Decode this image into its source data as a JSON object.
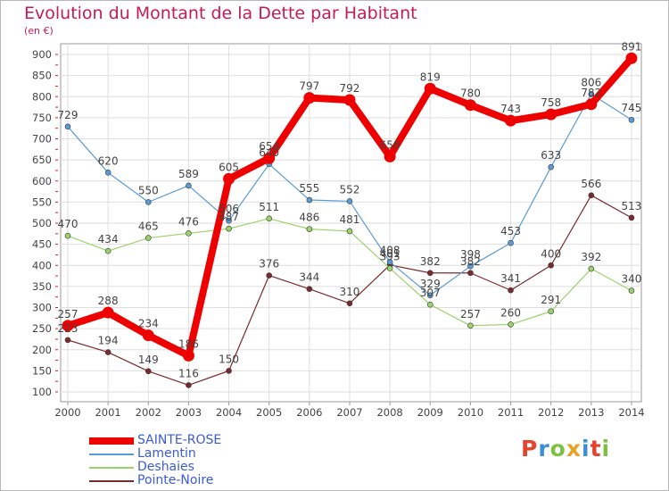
{
  "chart": {
    "title": "Evolution du Montant de la Dette par Habitant",
    "unit_label": "(en €)"
  },
  "logo": {
    "text": "Proxiti",
    "letter_colors": [
      "#e5432e",
      "#3a8fd6",
      "#7cc242",
      "#e5a323",
      "#3a8fd6",
      "#e5432e",
      "#7cc242"
    ]
  },
  "chart_data": {
    "type": "line",
    "title": "Evolution du Montant de la Dette par Habitant",
    "ylabel": "(en €)",
    "ylim": [
      100,
      900
    ],
    "yticks": [
      100,
      150,
      200,
      250,
      300,
      350,
      400,
      450,
      500,
      550,
      600,
      650,
      700,
      750,
      800,
      850,
      900
    ],
    "grid": true,
    "legend_position": "bottom-left",
    "x": [
      "2000",
      "2001",
      "2002",
      "2003",
      "2004",
      "2005",
      "2006",
      "2007",
      "2008",
      "2009",
      "2010",
      "2011",
      "2012",
      "2013",
      "2014"
    ],
    "series": [
      {
        "name": "SAINTE-ROSE",
        "color": "#ee0000",
        "values": [
          257,
          288,
          234,
          186,
          605,
          654,
          797,
          792,
          658,
          819,
          780,
          743,
          758,
          782,
          891
        ],
        "value_labels": [
          "257",
          "288",
          "234",
          "186",
          "605",
          "654",
          "797",
          "792",
          "658",
          "819",
          "780",
          "743",
          "758",
          "782",
          "891"
        ]
      },
      {
        "name": "Lamentin",
        "color": "#5b9bd5",
        "values": [
          729,
          620,
          550,
          589,
          506,
          640,
          555,
          552,
          408,
          329,
          398,
          453,
          633,
          806,
          745
        ],
        "value_labels": [
          "729",
          "620",
          "550",
          "589",
          "506",
          "640",
          "555",
          "552",
          "408",
          "329",
          "398",
          "453",
          "633",
          "806",
          "745"
        ]
      },
      {
        "name": "Deshaies",
        "color": "#9ad36a",
        "values": [
          470,
          434,
          465,
          476,
          487,
          511,
          486,
          481,
          393,
          307,
          257,
          260,
          291,
          392,
          340
        ],
        "value_labels": [
          "470",
          "434",
          "465",
          "476",
          "487",
          "511",
          "486",
          "481",
          "393",
          "307",
          "257",
          "260",
          "291",
          "392",
          "340"
        ]
      },
      {
        "name": "Pointe-Noire",
        "color": "#7a2a2a",
        "values": [
          223,
          194,
          149,
          116,
          150,
          376,
          344,
          310,
          401,
          382,
          382,
          341,
          400,
          566,
          513
        ],
        "value_labels": [
          "223",
          "194",
          "149",
          "116",
          "150",
          "376",
          "344",
          "310",
          "401",
          "382",
          "382",
          "341",
          "400",
          "566",
          "513"
        ]
      }
    ]
  }
}
